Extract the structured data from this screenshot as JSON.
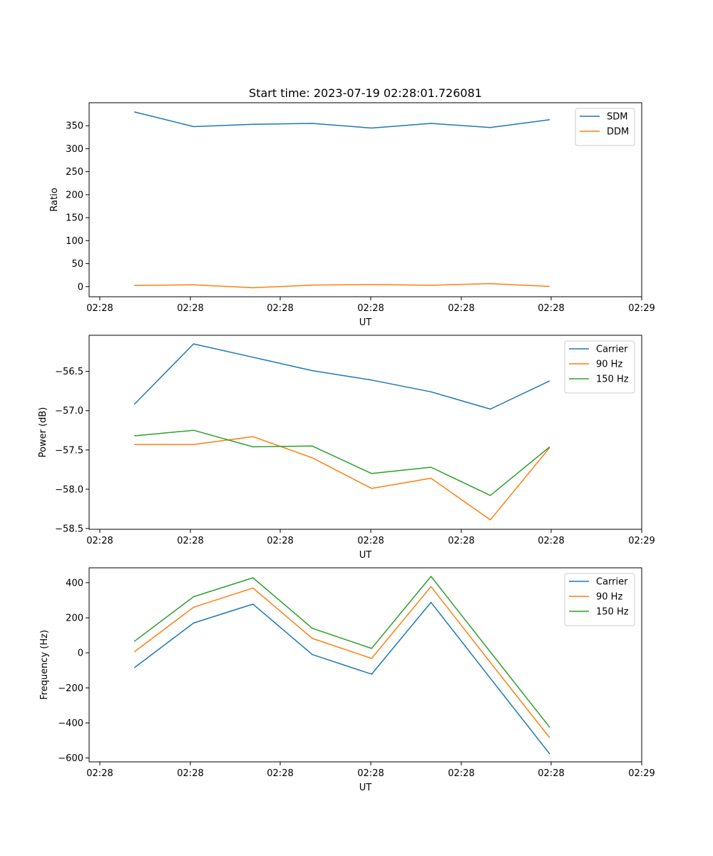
{
  "chart_data": [
    {
      "type": "line",
      "title": "Start time: 2023-07-19 02:28:01.726081",
      "xlabel": "UT",
      "ylabel": "Ratio",
      "x_tick_labels": [
        "02:28",
        "02:28",
        "02:28",
        "02:28",
        "02:28",
        "02:28",
        "02:29"
      ],
      "y_ticks": [
        0,
        50,
        100,
        150,
        200,
        250,
        300,
        350
      ],
      "y_tick_labels": [
        "0",
        "50",
        "100",
        "150",
        "200",
        "250",
        "300",
        "350"
      ],
      "xlim": [
        -0.76,
        8.55
      ],
      "ylim": [
        -22,
        400
      ],
      "x": [
        0,
        1,
        2,
        3,
        4,
        5,
        6,
        7
      ],
      "legend_location": "upper right",
      "series": [
        {
          "name": "SDM",
          "color": "#1f77b4",
          "values": [
            380,
            348,
            353,
            355,
            345,
            355,
            346,
            363
          ]
        },
        {
          "name": "DDM",
          "color": "#ff7f0e",
          "values": [
            2.5,
            4,
            -2.5,
            3.5,
            4.5,
            3,
            6.5,
            0.5
          ]
        }
      ]
    },
    {
      "type": "line",
      "title": "",
      "xlabel": "UT",
      "ylabel": "Power (dB)",
      "x_tick_labels": [
        "02:28",
        "02:28",
        "02:28",
        "02:28",
        "02:28",
        "02:28",
        "02:29"
      ],
      "y_ticks": [
        -58.5,
        -58.0,
        -57.5,
        -57.0,
        -56.5
      ],
      "y_tick_labels": [
        "−58.5",
        "−58.0",
        "−57.5",
        "−57.0",
        "−56.5"
      ],
      "xlim": [
        -0.76,
        8.55
      ],
      "ylim": [
        -58.51,
        -56.04
      ],
      "x": [
        0,
        1,
        2,
        3,
        4,
        5,
        6,
        7
      ],
      "legend_location": "upper right",
      "series": [
        {
          "name": "Carrier",
          "color": "#1f77b4",
          "values": [
            -56.92,
            -56.15,
            -56.32,
            -56.49,
            -56.61,
            -56.76,
            -56.98,
            -56.62
          ]
        },
        {
          "name": "90 Hz",
          "color": "#ff7f0e",
          "values": [
            -57.43,
            -57.43,
            -57.33,
            -57.6,
            -57.99,
            -57.86,
            -58.39,
            -57.47
          ]
        },
        {
          "name": "150 Hz",
          "color": "#2ca02c",
          "values": [
            -57.32,
            -57.25,
            -57.46,
            -57.45,
            -57.8,
            -57.72,
            -58.08,
            -57.46
          ]
        }
      ]
    },
    {
      "type": "line",
      "title": "",
      "xlabel": "UT",
      "ylabel": "Frequency (Hz)",
      "x_tick_labels": [
        "02:28",
        "02:28",
        "02:28",
        "02:28",
        "02:28",
        "02:28",
        "02:29"
      ],
      "y_ticks": [
        -600,
        -400,
        -200,
        0,
        200,
        400
      ],
      "y_tick_labels": [
        "−600",
        "−400",
        "−200",
        "0",
        "200",
        "400"
      ],
      "xlim": [
        -0.76,
        8.55
      ],
      "ylim": [
        -622,
        485
      ],
      "x": [
        0,
        1,
        2,
        3,
        4,
        5,
        6,
        7
      ],
      "legend_location": "upper right",
      "series": [
        {
          "name": "Carrier",
          "color": "#1f77b4",
          "values": [
            -85,
            170,
            278,
            -10,
            -122,
            288,
            -145,
            -577
          ]
        },
        {
          "name": "90 Hz",
          "color": "#ff7f0e",
          "values": [
            5,
            260,
            370,
            82,
            -32,
            378,
            -55,
            -485
          ]
        },
        {
          "name": "150 Hz",
          "color": "#2ca02c",
          "values": [
            65,
            320,
            428,
            140,
            25,
            436,
            5,
            -425
          ]
        }
      ]
    }
  ]
}
